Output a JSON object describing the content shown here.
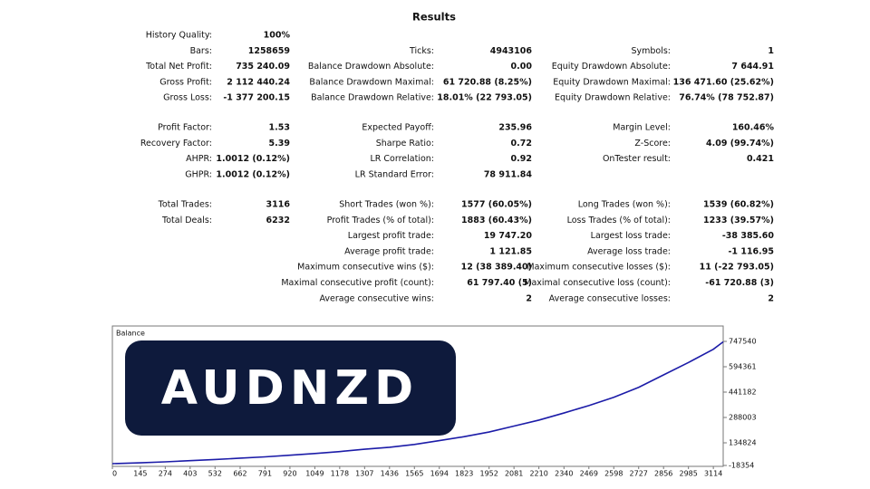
{
  "results": {
    "title": "Results",
    "blocks": [
      [
        {
          "left": {
            "label": "History Quality:",
            "value": "100%"
          }
        },
        {
          "left": {
            "label": "Bars:",
            "value": "1258659"
          },
          "middle": {
            "label": "Ticks:",
            "value": "4943106"
          },
          "right": {
            "label": "Symbols:",
            "value": "1"
          }
        },
        {
          "left": {
            "label": "Total Net Profit:",
            "value": "735 240.09"
          },
          "middle": {
            "label": "Balance Drawdown Absolute:",
            "value": "0.00"
          },
          "right": {
            "label": "Equity Drawdown Absolute:",
            "value": "7 644.91"
          }
        },
        {
          "left": {
            "label": "Gross Profit:",
            "value": "2 112 440.24"
          },
          "middle": {
            "label": "Balance Drawdown Maximal:",
            "value": "61 720.88 (8.25%)"
          },
          "right": {
            "label": "Equity Drawdown Maximal:",
            "value": "136 471.60 (25.62%)"
          }
        },
        {
          "left": {
            "label": "Gross Loss:",
            "value": "-1 377 200.15"
          },
          "middle": {
            "label": "Balance Drawdown Relative:",
            "value": "18.01% (22 793.05)"
          },
          "right": {
            "label": "Equity Drawdown Relative:",
            "value": "76.74% (78 752.87)"
          }
        }
      ],
      [
        {
          "left": {
            "label": "Profit Factor:",
            "value": "1.53"
          },
          "middle": {
            "label": "Expected Payoff:",
            "value": "235.96"
          },
          "right": {
            "label": "Margin Level:",
            "value": "160.46%"
          }
        },
        {
          "left": {
            "label": "Recovery Factor:",
            "value": "5.39"
          },
          "middle": {
            "label": "Sharpe Ratio:",
            "value": "0.72"
          },
          "right": {
            "label": "Z-Score:",
            "value": "4.09 (99.74%)"
          }
        },
        {
          "left": {
            "label": "AHPR:",
            "value": "1.0012 (0.12%)"
          },
          "middle": {
            "label": "LR Correlation:",
            "value": "0.92"
          },
          "right": {
            "label": "OnTester result:",
            "value": "0.421"
          }
        },
        {
          "left": {
            "label": "GHPR:",
            "value": "1.0012 (0.12%)"
          },
          "middle": {
            "label": "LR Standard Error:",
            "value": "78 911.84"
          }
        }
      ],
      [
        {
          "left": {
            "label": "Total Trades:",
            "value": "3116"
          },
          "middle": {
            "label": "Short Trades (won %):",
            "value": "1577 (60.05%)"
          },
          "right": {
            "label": "Long Trades (won %):",
            "value": "1539 (60.82%)"
          }
        },
        {
          "left": {
            "label": "Total Deals:",
            "value": "6232"
          },
          "middle": {
            "label": "Profit Trades (% of total):",
            "value": "1883 (60.43%)"
          },
          "right": {
            "label": "Loss Trades (% of total):",
            "value": "1233 (39.57%)"
          }
        },
        {
          "middle": {
            "label": "Largest profit trade:",
            "value": "19 747.20"
          },
          "right": {
            "label": "Largest loss trade:",
            "value": "-38 385.60"
          }
        },
        {
          "middle": {
            "label": "Average profit trade:",
            "value": "1 121.85"
          },
          "right": {
            "label": "Average loss trade:",
            "value": "-1 116.95"
          }
        },
        {
          "middle": {
            "label": "Maximum consecutive wins ($):",
            "value": "12 (38 389.40)"
          },
          "right": {
            "label": "Maximum consecutive losses ($):",
            "value": "11 (-22 793.05)"
          }
        },
        {
          "middle": {
            "label": "Maximal consecutive profit (count):",
            "value": "61 797.40 (5)"
          },
          "right": {
            "label": "Maximal consecutive loss (count):",
            "value": "-61 720.88 (3)"
          }
        },
        {
          "middle": {
            "label": "Average consecutive wins:",
            "value": "2"
          },
          "right": {
            "label": "Average consecutive losses:",
            "value": "2"
          }
        }
      ]
    ]
  },
  "badge": "AUDNZD",
  "chart_data": {
    "type": "line",
    "x": [
      0,
      145,
      274,
      403,
      532,
      662,
      791,
      920,
      1049,
      1178,
      1307,
      1436,
      1565,
      1694,
      1823,
      1952,
      2081,
      2210,
      2340,
      2469,
      2598,
      2727,
      2856,
      2985,
      3114,
      3165
    ],
    "series": [
      {
        "name": "Balance",
        "color": "#1c1ca8",
        "values": [
          9000,
          14000,
          20000,
          27000,
          34000,
          42000,
          50000,
          60000,
          70000,
          82000,
          96000,
          108000,
          125000,
          148000,
          172000,
          200000,
          236000,
          272000,
          315000,
          360000,
          410000,
          470000,
          545000,
          620000,
          700000,
          745000
        ]
      }
    ],
    "xlim": [
      0,
      3165
    ],
    "ylim": [
      -18354,
      747540
    ],
    "xticks": [
      0,
      145,
      274,
      403,
      532,
      662,
      791,
      920,
      1049,
      1178,
      1307,
      1436,
      1565,
      1694,
      1823,
      1952,
      2081,
      2210,
      2340,
      2469,
      2598,
      2727,
      2856,
      2985,
      3114
    ],
    "yticks": [
      747540,
      594361,
      441182,
      288003,
      134824,
      -18354
    ]
  }
}
